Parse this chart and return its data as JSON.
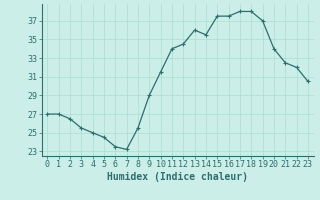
{
  "x": [
    0,
    1,
    2,
    3,
    4,
    5,
    6,
    7,
    8,
    9,
    10,
    11,
    12,
    13,
    14,
    15,
    16,
    17,
    18,
    19,
    20,
    21,
    22,
    23
  ],
  "y": [
    27,
    27,
    26.5,
    25.5,
    25,
    24.5,
    23.5,
    23.2,
    25.5,
    29,
    31.5,
    34,
    34.5,
    36,
    35.5,
    37.5,
    37.5,
    38,
    38,
    37,
    34,
    32.5,
    32,
    30.5
  ],
  "line_color": "#2d6e6e",
  "marker": "+",
  "marker_size": 3,
  "marker_lw": 0.8,
  "bg_color": "#cceee8",
  "grid_color": "#aaddcc",
  "xlabel": "Humidex (Indice chaleur)",
  "xlim": [
    -0.5,
    23.5
  ],
  "ylim": [
    22.5,
    38.8
  ],
  "yticks": [
    23,
    25,
    27,
    29,
    31,
    33,
    35,
    37
  ],
  "xticks": [
    0,
    1,
    2,
    3,
    4,
    5,
    6,
    7,
    8,
    9,
    10,
    11,
    12,
    13,
    14,
    15,
    16,
    17,
    18,
    19,
    20,
    21,
    22,
    23
  ],
  "tick_fontsize": 6,
  "xlabel_fontsize": 7
}
